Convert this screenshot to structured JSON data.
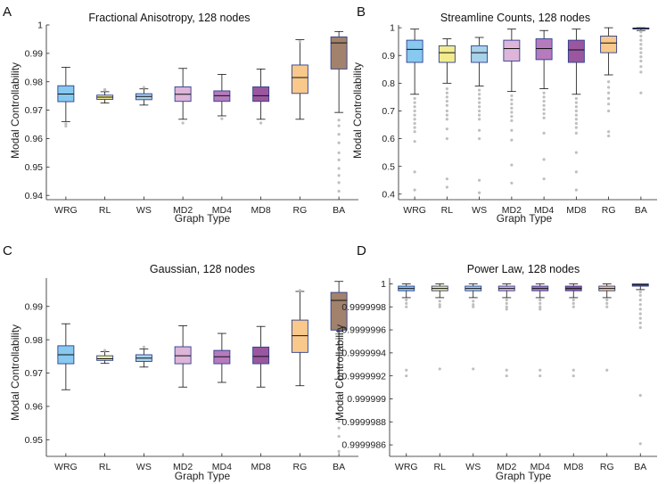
{
  "figure": {
    "categories": [
      "WRG",
      "RL",
      "WS",
      "MD2",
      "MD4",
      "MD8",
      "RG",
      "BA"
    ],
    "colors": [
      "#87c9ef",
      "#f3ec8e",
      "#a8d1ea",
      "#dcb5d9",
      "#b57bbd",
      "#9a579f",
      "#f8c98b",
      "#a2826c"
    ],
    "box_edge": "#2e3e8c",
    "outlier_color": "#bfbfbf",
    "whisker_color": "#111111"
  },
  "chart_data": [
    {
      "panel": "A",
      "type": "box",
      "title": "Fractional Anisotropy, 128 nodes",
      "xlabel": "Graph Type",
      "ylabel": "Modal Controllability",
      "ylim": [
        0.9385,
        1.0
      ],
      "yticks": [
        0.94,
        0.95,
        0.96,
        0.97,
        0.98,
        0.99,
        1
      ],
      "ytick_labels": [
        "0.94",
        "0.95",
        "0.96",
        "0.97",
        "0.98",
        "0.99",
        "1"
      ],
      "boxes": [
        {
          "name": "WRG",
          "wlo": 0.966,
          "q1": 0.973,
          "med": 0.9757,
          "q3": 0.9786,
          "whi": 0.9851,
          "out": [
            0.9644,
            0.9652
          ]
        },
        {
          "name": "RL",
          "wlo": 0.9725,
          "q1": 0.9738,
          "med": 0.9746,
          "q3": 0.9753,
          "whi": 0.9765,
          "out": [
            0.977,
            0.9773
          ]
        },
        {
          "name": "WS",
          "wlo": 0.9718,
          "q1": 0.9737,
          "med": 0.9748,
          "q3": 0.9758,
          "whi": 0.9775,
          "out": [
            0.978
          ]
        },
        {
          "name": "MD2",
          "wlo": 0.9668,
          "q1": 0.9731,
          "med": 0.9756,
          "q3": 0.9782,
          "whi": 0.9847,
          "out": [
            0.9655
          ]
        },
        {
          "name": "MD4",
          "wlo": 0.968,
          "q1": 0.9731,
          "med": 0.9751,
          "q3": 0.9768,
          "whi": 0.9826,
          "out": [
            0.967
          ]
        },
        {
          "name": "MD8",
          "wlo": 0.9668,
          "q1": 0.9731,
          "med": 0.9751,
          "q3": 0.9782,
          "whi": 0.9845,
          "out": [
            0.9655
          ]
        },
        {
          "name": "RG",
          "wlo": 0.9668,
          "q1": 0.9759,
          "med": 0.9815,
          "q3": 0.9859,
          "whi": 0.9948,
          "out": [
            0.9942
          ]
        },
        {
          "name": "BA",
          "wlo": 0.9692,
          "q1": 0.9845,
          "med": 0.9937,
          "q3": 0.9958,
          "whi": 0.9977,
          "out": [
            0.9665,
            0.9645,
            0.9615,
            0.9585,
            0.955,
            0.9525,
            0.9495,
            0.947,
            0.9445,
            0.9415
          ]
        }
      ]
    },
    {
      "panel": "B",
      "type": "box",
      "title": "Streamline Counts, 128 nodes",
      "xlabel": "Graph Type",
      "ylabel": "Modal Controllability",
      "ylim": [
        0.38,
        1.01
      ],
      "yticks": [
        0.4,
        0.5,
        0.6,
        0.7,
        0.8,
        0.9,
        1
      ],
      "ytick_labels": [
        "0.4",
        "0.5",
        "0.6",
        "0.7",
        "0.8",
        "0.9",
        "1"
      ],
      "boxes": [
        {
          "name": "WRG",
          "wlo": 0.76,
          "q1": 0.875,
          "med": 0.922,
          "q3": 0.955,
          "whi": 0.995,
          "out": [
            0.745,
            0.73,
            0.715,
            0.7,
            0.685,
            0.67,
            0.655,
            0.64,
            0.625,
            0.59,
            0.48,
            0.415
          ]
        },
        {
          "name": "RL",
          "wlo": 0.8,
          "q1": 0.875,
          "med": 0.91,
          "q3": 0.935,
          "whi": 0.96,
          "out": [
            0.78,
            0.765,
            0.75,
            0.735,
            0.72,
            0.7,
            0.685,
            0.67,
            0.635,
            0.6,
            0.455,
            0.425
          ]
        },
        {
          "name": "WS",
          "wlo": 0.79,
          "q1": 0.875,
          "med": 0.91,
          "q3": 0.935,
          "whi": 0.965,
          "out": [
            0.775,
            0.76,
            0.745,
            0.73,
            0.715,
            0.7,
            0.685,
            0.67,
            0.63,
            0.6,
            0.45,
            0.405
          ]
        },
        {
          "name": "MD2",
          "wlo": 0.77,
          "q1": 0.88,
          "med": 0.925,
          "q3": 0.955,
          "whi": 0.995,
          "out": [
            0.755,
            0.74,
            0.725,
            0.71,
            0.695,
            0.68,
            0.665,
            0.63,
            0.595,
            0.505,
            0.44
          ]
        },
        {
          "name": "MD4",
          "wlo": 0.78,
          "q1": 0.885,
          "med": 0.925,
          "q3": 0.96,
          "whi": 0.99,
          "out": [
            0.765,
            0.75,
            0.735,
            0.72,
            0.705,
            0.69,
            0.675,
            0.62,
            0.525,
            0.455
          ]
        },
        {
          "name": "MD8",
          "wlo": 0.76,
          "q1": 0.875,
          "med": 0.92,
          "q3": 0.955,
          "whi": 0.995,
          "out": [
            0.745,
            0.73,
            0.715,
            0.7,
            0.685,
            0.67,
            0.655,
            0.64,
            0.62,
            0.55,
            0.48,
            0.415
          ]
        },
        {
          "name": "RG",
          "wlo": 0.83,
          "q1": 0.91,
          "med": 0.945,
          "q3": 0.97,
          "whi": 1.0,
          "out": [
            0.805,
            0.785,
            0.765,
            0.745,
            0.725,
            0.7,
            0.625,
            0.61
          ]
        },
        {
          "name": "BA",
          "wlo": 0.99,
          "q1": 0.996,
          "med": 0.998,
          "q3": 0.999,
          "whi": 1.0,
          "out": [
            0.985,
            0.97,
            0.955,
            0.94,
            0.925,
            0.91,
            0.895,
            0.88,
            0.86,
            0.84,
            0.765
          ]
        }
      ]
    },
    {
      "panel": "C",
      "type": "box",
      "title": "Gaussian, 128 nodes",
      "xlabel": "Graph Type",
      "ylabel": "Modal Controllability",
      "ylim": [
        0.945,
        0.9985
      ],
      "yticks": [
        0.95,
        0.96,
        0.97,
        0.98,
        0.99
      ],
      "ytick_labels": [
        "0.95",
        "0.96",
        "0.97",
        "0.98",
        "0.99"
      ],
      "boxes": [
        {
          "name": "WRG",
          "wlo": 0.965,
          "q1": 0.9728,
          "med": 0.9755,
          "q3": 0.9782,
          "whi": 0.9848,
          "out": []
        },
        {
          "name": "RL",
          "wlo": 0.9729,
          "q1": 0.9738,
          "med": 0.9743,
          "q3": 0.9752,
          "whi": 0.9764,
          "out": [
            0.9768
          ]
        },
        {
          "name": "WS",
          "wlo": 0.9718,
          "q1": 0.9735,
          "med": 0.9745,
          "q3": 0.9755,
          "whi": 0.9772,
          "out": [
            0.9778
          ]
        },
        {
          "name": "MD2",
          "wlo": 0.9658,
          "q1": 0.9728,
          "med": 0.9752,
          "q3": 0.9779,
          "whi": 0.9842,
          "out": []
        },
        {
          "name": "MD4",
          "wlo": 0.9672,
          "q1": 0.9728,
          "med": 0.9749,
          "q3": 0.9768,
          "whi": 0.9819,
          "out": []
        },
        {
          "name": "MD8",
          "wlo": 0.9658,
          "q1": 0.9728,
          "med": 0.975,
          "q3": 0.9778,
          "whi": 0.984,
          "out": []
        },
        {
          "name": "RG",
          "wlo": 0.9662,
          "q1": 0.9762,
          "med": 0.9812,
          "q3": 0.9859,
          "whi": 0.9945,
          "out": [
            0.9948
          ]
        },
        {
          "name": "BA",
          "wlo": 0.9682,
          "q1": 0.9829,
          "med": 0.9918,
          "q3": 0.9942,
          "whi": 0.9975,
          "out": [
            0.966,
            0.964,
            0.962,
            0.9598,
            0.9578,
            0.9555,
            0.9535,
            0.951,
            0.9465
          ]
        }
      ]
    },
    {
      "panel": "D",
      "type": "box",
      "title": "Power Law, 128 nodes",
      "xlabel": "Graph Type",
      "ylabel": "Modal Controllability",
      "ylim": [
        0.9999985,
        1.00000005
      ],
      "yticks": [
        0.9999986,
        0.9999988,
        0.999999,
        0.9999992,
        0.9999994,
        0.9999996,
        0.9999998,
        1
      ],
      "ytick_labels": [
        "0.9999986",
        "0.9999988",
        "0.999999",
        "0.9999992",
        "0.9999994",
        "0.9999996",
        "0.9999998",
        "1"
      ],
      "boxes": [
        {
          "name": "WRG",
          "wlo": 0.99999988,
          "q1": 0.99999994,
          "med": 0.99999996,
          "q3": 0.99999998,
          "whi": 1.0,
          "out": [
            0.99999986,
            0.99999983,
            0.9999998,
            0.99999925,
            0.9999992
          ]
        },
        {
          "name": "RL",
          "wlo": 0.99999988,
          "q1": 0.99999994,
          "med": 0.99999996,
          "q3": 0.99999998,
          "whi": 1.0,
          "out": [
            0.99999985,
            0.99999982,
            0.9999998,
            0.99999926
          ]
        },
        {
          "name": "WS",
          "wlo": 0.99999988,
          "q1": 0.99999994,
          "med": 0.99999996,
          "q3": 0.99999998,
          "whi": 1.0,
          "out": [
            0.99999985,
            0.99999982,
            0.9999998,
            0.99999926
          ]
        },
        {
          "name": "MD2",
          "wlo": 0.99999988,
          "q1": 0.99999994,
          "med": 0.99999996,
          "q3": 0.99999998,
          "whi": 1.0,
          "out": [
            0.99999986,
            0.99999983,
            0.9999998,
            0.99999978,
            0.99999925,
            0.9999992
          ]
        },
        {
          "name": "MD4",
          "wlo": 0.99999988,
          "q1": 0.99999994,
          "med": 0.99999996,
          "q3": 0.99999998,
          "whi": 1.0,
          "out": [
            0.99999986,
            0.99999983,
            0.9999998,
            0.99999978,
            0.99999925,
            0.9999992
          ]
        },
        {
          "name": "MD8",
          "wlo": 0.99999988,
          "q1": 0.99999994,
          "med": 0.99999996,
          "q3": 0.99999998,
          "whi": 1.0,
          "out": [
            0.99999986,
            0.99999983,
            0.9999998,
            0.99999925,
            0.9999992
          ]
        },
        {
          "name": "RG",
          "wlo": 0.99999988,
          "q1": 0.99999994,
          "med": 0.99999996,
          "q3": 0.99999998,
          "whi": 1.0,
          "out": [
            0.99999986,
            0.99999983,
            0.9999998,
            0.99999925
          ]
        },
        {
          "name": "BA",
          "wlo": 0.99999995,
          "q1": 0.99999998,
          "med": 0.99999999,
          "q3": 1.0,
          "whi": 1.0,
          "out": [
            0.99999993,
            0.9999999,
            0.99999986,
            0.99999982,
            0.99999978,
            0.99999974,
            0.9999997,
            0.99999966,
            0.99999962,
            0.99999903,
            0.99999861
          ]
        }
      ]
    }
  ]
}
